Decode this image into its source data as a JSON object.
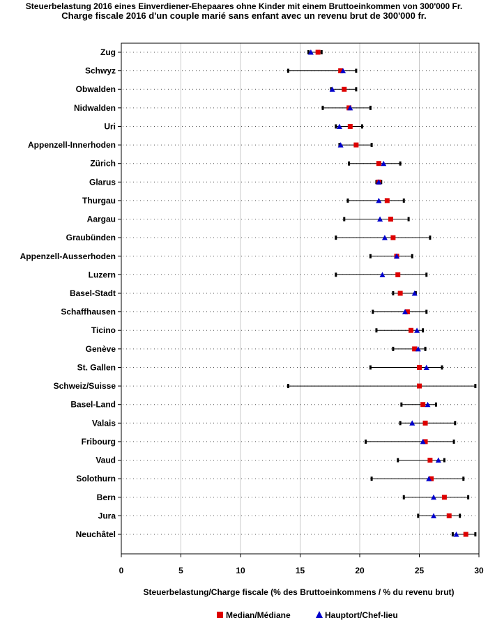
{
  "chart_data": {
    "type": "range-dot",
    "title": "Steuerbelastung 2016 eines Einverdiener-Ehepaares ohne Kinder mit einem Bruttoeinkommen von 300'000 Fr.",
    "subtitle": "Charge fiscale 2016 d'un couple marié sans enfant avec un revenu brut de 300'000 fr.",
    "xlabel": "Steuerbelastung/Charge fiscale (% des Bruttoeinkommens / % du revenu brut)",
    "xlim": [
      0,
      30
    ],
    "xticks": [
      0,
      5,
      10,
      15,
      20,
      25,
      30
    ],
    "categories": [
      "Zug",
      "Schwyz",
      "Obwalden",
      "Nidwalden",
      "Uri",
      "Appenzell-Innerhoden",
      "Zürich",
      "Glarus",
      "Thurgau",
      "Aargau",
      "Graubünden",
      "Appenzell-Ausserhoden",
      "Luzern",
      "Basel-Stadt",
      "Schaffhausen",
      "Ticino",
      "Genève",
      "St. Gallen",
      "Schweiz/Suisse",
      "Basel-Land",
      "Valais",
      "Fribourg",
      "Vaud",
      "Solothurn",
      "Bern",
      "Jura",
      "Neuchâtel"
    ],
    "min": [
      15.7,
      14.0,
      17.6,
      16.9,
      18.0,
      18.3,
      19.1,
      21.4,
      19.0,
      18.7,
      18.0,
      20.9,
      18.0,
      22.8,
      21.1,
      21.4,
      22.8,
      20.9,
      14.0,
      23.5,
      23.4,
      20.5,
      23.2,
      21.0,
      23.7,
      24.9,
      27.8
    ],
    "max": [
      16.8,
      19.7,
      19.7,
      20.9,
      20.2,
      21.0,
      23.4,
      21.8,
      23.7,
      24.1,
      25.9,
      24.4,
      25.6,
      24.7,
      25.6,
      25.3,
      25.5,
      26.9,
      29.7,
      26.4,
      28.0,
      27.9,
      27.1,
      28.7,
      29.1,
      28.4,
      29.7
    ],
    "series": [
      {
        "name": "Median/Médiane",
        "color": "#dd0000",
        "marker": "square",
        "values": [
          16.5,
          18.4,
          18.7,
          19.1,
          19.2,
          19.7,
          21.6,
          21.6,
          22.3,
          22.6,
          22.8,
          23.1,
          23.2,
          23.4,
          24.0,
          24.3,
          24.6,
          25.0,
          25.0,
          25.3,
          25.5,
          25.5,
          25.9,
          26.0,
          27.1,
          27.5,
          28.9
        ]
      },
      {
        "name": "Hauptort/Chef-lieu",
        "color": "#0000cc",
        "marker": "triangle",
        "values": [
          15.9,
          18.6,
          17.7,
          19.2,
          18.3,
          18.4,
          22.0,
          21.6,
          21.6,
          21.7,
          22.1,
          23.1,
          21.9,
          24.6,
          23.8,
          24.8,
          24.9,
          25.6,
          null,
          25.7,
          24.4,
          25.3,
          26.6,
          25.8,
          26.2,
          26.2,
          28.1
        ]
      }
    ],
    "grid": true,
    "legend_position": "bottom"
  }
}
